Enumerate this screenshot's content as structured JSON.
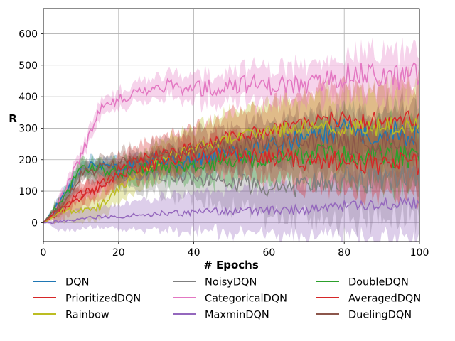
{
  "chart_data": {
    "type": "line",
    "title": "",
    "xlabel": "# Epochs",
    "ylabel": "R",
    "xlim": [
      0,
      100
    ],
    "ylim": [
      -60,
      680
    ],
    "xticks": [
      "0",
      "20",
      "40",
      "60",
      "80",
      "100"
    ],
    "yticks": [
      "0",
      "100",
      "200",
      "300",
      "400",
      "500",
      "600"
    ],
    "grid": true,
    "legend": {
      "placement": "bottom, 3 columns"
    },
    "x": [
      0,
      5,
      10,
      15,
      20,
      25,
      30,
      35,
      40,
      45,
      50,
      55,
      60,
      65,
      70,
      75,
      80,
      85,
      90,
      95,
      100
    ],
    "series": [
      {
        "name": "DQN",
        "color": "#1f77b4",
        "values": [
          0,
          70,
          175,
          180,
          165,
          185,
          195,
          190,
          200,
          210,
          215,
          225,
          240,
          255,
          270,
          280,
          290,
          285,
          290,
          285,
          290
        ],
        "band": [
          40,
          25,
          60,
          80
        ]
      },
      {
        "name": "PrioritizedDQN",
        "color": "#d62728",
        "values": [
          0,
          40,
          80,
          110,
          170,
          200,
          215,
          230,
          245,
          260,
          275,
          285,
          295,
          310,
          320,
          330,
          330,
          320,
          325,
          330,
          330
        ],
        "band": [
          60,
          15,
          100,
          60
        ]
      },
      {
        "name": "Rainbow",
        "color": "#bcbd22",
        "values": [
          0,
          35,
          40,
          50,
          110,
          150,
          190,
          215,
          235,
          255,
          270,
          280,
          290,
          295,
          300,
          300,
          305,
          300,
          305,
          305,
          300
        ],
        "band": [
          60,
          15,
          110,
          60
        ]
      },
      {
        "name": "NoisyDQN",
        "color": "#7f7f7f",
        "values": [
          0,
          60,
          170,
          165,
          150,
          155,
          150,
          145,
          140,
          130,
          130,
          120,
          110,
          110,
          120,
          130,
          140,
          130,
          140,
          140,
          150
        ],
        "band": [
          40,
          25,
          130,
          80
        ]
      },
      {
        "name": "CategoricalDQN",
        "color": "#e377c2",
        "values": [
          0,
          80,
          210,
          360,
          390,
          410,
          430,
          435,
          425,
          430,
          440,
          440,
          435,
          440,
          430,
          450,
          470,
          470,
          465,
          460,
          470
        ],
        "band": [
          40,
          25,
          65,
          80
        ]
      },
      {
        "name": "MaxminDQN",
        "color": "#9467bd",
        "values": [
          0,
          5,
          12,
          18,
          20,
          25,
          28,
          30,
          33,
          35,
          37,
          38,
          38,
          40,
          42,
          48,
          55,
          55,
          58,
          60,
          65
        ],
        "band": [
          60,
          5,
          90,
          40
        ]
      },
      {
        "name": "DoubleDQN",
        "color": "#2ca02c",
        "values": [
          0,
          65,
          180,
          170,
          160,
          170,
          175,
          180,
          185,
          190,
          195,
          200,
          205,
          210,
          210,
          215,
          210,
          210,
          215,
          210,
          210
        ],
        "band": [
          40,
          25,
          90,
          80
        ]
      },
      {
        "name": "AveragedDQN",
        "color": "#d62728",
        "values": [
          0,
          55,
          90,
          120,
          150,
          170,
          185,
          200,
          210,
          215,
          220,
          215,
          210,
          205,
          195,
          200,
          195,
          190,
          185,
          185,
          180
        ],
        "band": [
          40,
          20,
          95,
          70
        ]
      },
      {
        "name": "DuelingDQN",
        "color": "#8c564b",
        "values": [
          0,
          60,
          150,
          175,
          185,
          195,
          205,
          215,
          225,
          235,
          240,
          245,
          250,
          255,
          255,
          260,
          255,
          255,
          250,
          250,
          245
        ],
        "band": [
          40,
          25,
          100,
          80
        ]
      }
    ]
  }
}
